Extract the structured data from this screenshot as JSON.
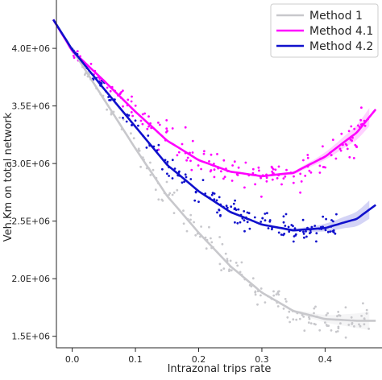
{
  "colors": {
    "method_1": "#c8c8cc",
    "method_4_1": "#ff00ff",
    "method_4_2": "#1010cc",
    "axis": "#262626"
  },
  "chart_data": {
    "type": "scatter",
    "title": "",
    "xlabel": "Intrazonal trips rate",
    "ylabel": "Veh.Km on total network",
    "xlim": [
      -0.025,
      0.49
    ],
    "ylim": [
      1400000,
      4420000
    ],
    "x_ticks": [
      0.0,
      0.1,
      0.2,
      0.3,
      0.4
    ],
    "x_tick_labels": [
      "0.0",
      "0.1",
      "0.2",
      "0.3",
      "0.4"
    ],
    "y_ticks": [
      1500000,
      2000000,
      2500000,
      3000000,
      3500000,
      4000000
    ],
    "y_tick_labels": [
      "1.5E+06",
      "2.0E+06",
      "2.5E+06",
      "3.0E+06",
      "3.5E+06",
      "4.0E+06"
    ],
    "grid": false,
    "legend": {
      "placement": "top-right"
    },
    "series": [
      {
        "name": "Method 1",
        "color_key": "method_1",
        "x_range": [
          0.0,
          0.47
        ],
        "fit": [
          {
            "x": -0.03,
            "y": 4250000
          },
          {
            "x": 0.0,
            "y": 3990000
          },
          {
            "x": 0.05,
            "y": 3560000
          },
          {
            "x": 0.1,
            "y": 3130000
          },
          {
            "x": 0.15,
            "y": 2720000
          },
          {
            "x": 0.2,
            "y": 2400000
          },
          {
            "x": 0.25,
            "y": 2110000
          },
          {
            "x": 0.3,
            "y": 1880000
          },
          {
            "x": 0.35,
            "y": 1720000
          },
          {
            "x": 0.4,
            "y": 1650000
          },
          {
            "x": 0.45,
            "y": 1635000
          },
          {
            "x": 0.48,
            "y": 1635000
          }
        ],
        "noise": 90000
      },
      {
        "name": "Method 4.1",
        "color_key": "method_4_1",
        "x_range": [
          0.0,
          0.47
        ],
        "fit": [
          {
            "x": -0.03,
            "y": 4250000
          },
          {
            "x": 0.0,
            "y": 3980000
          },
          {
            "x": 0.05,
            "y": 3720000
          },
          {
            "x": 0.1,
            "y": 3450000
          },
          {
            "x": 0.15,
            "y": 3200000
          },
          {
            "x": 0.2,
            "y": 3030000
          },
          {
            "x": 0.25,
            "y": 2930000
          },
          {
            "x": 0.3,
            "y": 2890000
          },
          {
            "x": 0.35,
            "y": 2920000
          },
          {
            "x": 0.4,
            "y": 3060000
          },
          {
            "x": 0.45,
            "y": 3270000
          },
          {
            "x": 0.48,
            "y": 3470000
          }
        ],
        "noise": 110000
      },
      {
        "name": "Method 4.2",
        "color_key": "method_4_2",
        "x_range": [
          0.0,
          0.42
        ],
        "fit": [
          {
            "x": -0.03,
            "y": 4250000
          },
          {
            "x": 0.0,
            "y": 3990000
          },
          {
            "x": 0.05,
            "y": 3650000
          },
          {
            "x": 0.1,
            "y": 3320000
          },
          {
            "x": 0.15,
            "y": 2990000
          },
          {
            "x": 0.2,
            "y": 2760000
          },
          {
            "x": 0.25,
            "y": 2580000
          },
          {
            "x": 0.3,
            "y": 2470000
          },
          {
            "x": 0.35,
            "y": 2420000
          },
          {
            "x": 0.4,
            "y": 2440000
          },
          {
            "x": 0.45,
            "y": 2520000
          },
          {
            "x": 0.48,
            "y": 2640000
          }
        ],
        "noise": 75000
      }
    ]
  }
}
